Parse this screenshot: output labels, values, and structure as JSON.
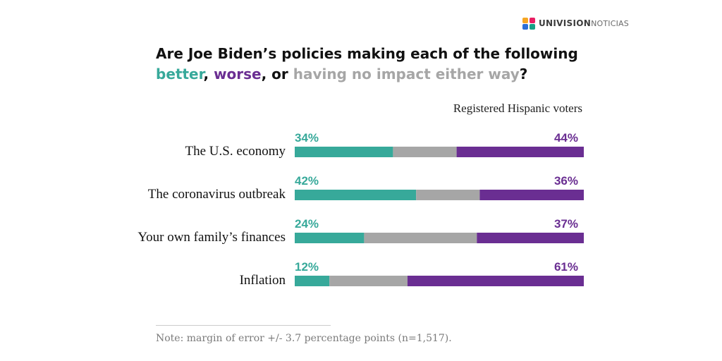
{
  "brand": {
    "name": "UNIVISION",
    "sub": "NOTICIAS",
    "logo_colors": [
      "#f5a623",
      "#e91e63",
      "#2d6fd6",
      "#16a085"
    ]
  },
  "title": {
    "line1": "Are Joe Biden’s policies making each of the following",
    "better": "better",
    "sep1": ", ",
    "worse": "worse",
    "sep2": ", or ",
    "none": "having no impact either way",
    "end": "?"
  },
  "subtitle": "Registered Hispanic voters",
  "note": "Note: margin of error +/- 3.7 percentage points (n=1,517).",
  "colors": {
    "better": "#37a99a",
    "worse": "#6a2e92",
    "no_impact": "#a6a6a6"
  },
  "chart_data": {
    "type": "bar",
    "stacked": true,
    "orientation": "horizontal",
    "categories": [
      "The U.S. economy",
      "The coronavirus outbreak",
      "Your own family’s finances",
      "Inflation"
    ],
    "series": [
      {
        "name": "better",
        "values": [
          34,
          42,
          24,
          12
        ],
        "labels": [
          "34%",
          "42%",
          "24%",
          "12%"
        ]
      },
      {
        "name": "having no impact either way",
        "values": [
          22,
          22,
          39,
          27
        ]
      },
      {
        "name": "worse",
        "values": [
          44,
          36,
          37,
          61
        ],
        "labels": [
          "44%",
          "36%",
          "37%",
          "61%"
        ]
      }
    ]
  }
}
